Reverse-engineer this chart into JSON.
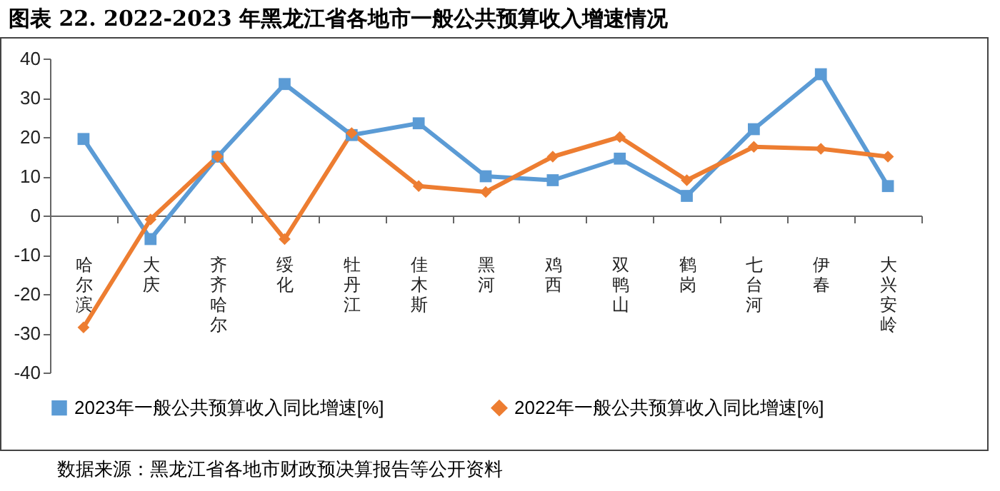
{
  "chart_data": {
    "type": "line",
    "title": "图表 22.  2022-2023 年黑龙江省各地市一般公共预算收入增速情况",
    "categories": [
      "哈尔滨",
      "大庆",
      "齐齐哈尔",
      "绥化",
      "牡丹江",
      "佳木斯",
      "黑河",
      "鸡西",
      "双鸭山",
      "鹤岗",
      "七台河",
      "伊春",
      "大兴安岭"
    ],
    "series": [
      {
        "name": "2023年一般公共预算收入同比增速[%]",
        "color": "#5b9bd5",
        "marker": "square",
        "values": [
          19.5,
          -6,
          15,
          33.5,
          20.5,
          23.5,
          10,
          9,
          14.5,
          5,
          22,
          36,
          7.5
        ]
      },
      {
        "name": "2022年一般公共预算收入同比增速[%]",
        "color": "#ed7d31",
        "marker": "diamond",
        "values": [
          -28.5,
          -1,
          15,
          -6,
          21,
          7.5,
          6,
          15,
          20,
          9,
          17.5,
          17,
          15
        ]
      }
    ],
    "ylim": [
      -40,
      40
    ],
    "yticks": [
      -40,
      -30,
      -20,
      -10,
      0,
      10,
      20,
      30,
      40
    ],
    "grid": false,
    "legend": "bottom",
    "annotations": [
      "数据来源：黑龙江省各地市财政预决算报告等公开资料"
    ]
  }
}
